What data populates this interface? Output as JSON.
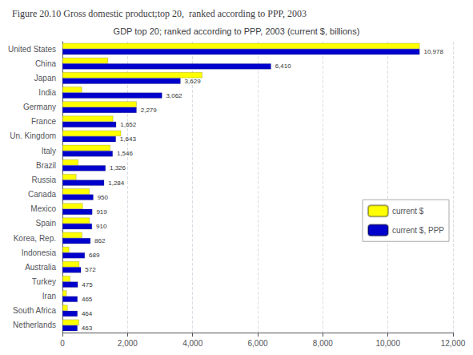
{
  "chart_data": {
    "type": "bar",
    "orientation": "horizontal",
    "title": "Figure 20.10 Gross domestic product;top 20,  ranked according to PPP, 2003",
    "subtitle": "GDP top 20; ranked according to PPP, 2003 (current $, billions)",
    "categories": [
      "United States",
      "China",
      "Japan",
      "India",
      "Germany",
      "France",
      "Un. Kingdom",
      "Italy",
      "Brazil",
      "Russia",
      "Canada",
      "Mexico",
      "Spain",
      "Korea, Rep.",
      "Indonesia",
      "Australia",
      "Turkey",
      "Iran",
      "South Africa",
      "Netherlands"
    ],
    "series": [
      {
        "name": "current $",
        "color": "#FFFF00",
        "values": [
          10978,
          1400,
          4300,
          600,
          2280,
          1560,
          1800,
          1470,
          490,
          430,
          834,
          626,
          837,
          605,
          208,
          518,
          239,
          130,
          159,
          511
        ]
      },
      {
        "name": "current $, PPP",
        "color": "#0000CC",
        "data_labels": true,
        "values": [
          10978,
          6410,
          3629,
          3062,
          2279,
          1652,
          1643,
          1546,
          1326,
          1284,
          950,
          919,
          910,
          862,
          689,
          572,
          475,
          465,
          464,
          463
        ],
        "value_labels": [
          "10,978",
          "6,410",
          "3,629",
          "3,062",
          "2,279",
          "1,652",
          "1,643",
          "1,546",
          "1,326",
          "1,284",
          "950",
          "919",
          "910",
          "862",
          "689",
          "572",
          "475",
          "465",
          "464",
          "463"
        ]
      }
    ],
    "xlim": [
      0,
      12000
    ],
    "xticks": [
      0,
      {
        "value": 2000,
        "label": "2,000"
      },
      {
        "value": 4000,
        "label": "4,000"
      },
      {
        "value": 6000,
        "label": "6,000"
      },
      {
        "value": 8000,
        "label": "8,000"
      },
      {
        "value": 10000,
        "label": "10,000"
      },
      {
        "value": 12000,
        "label": "12,000"
      }
    ],
    "grid": true,
    "legend": "lower right"
  }
}
